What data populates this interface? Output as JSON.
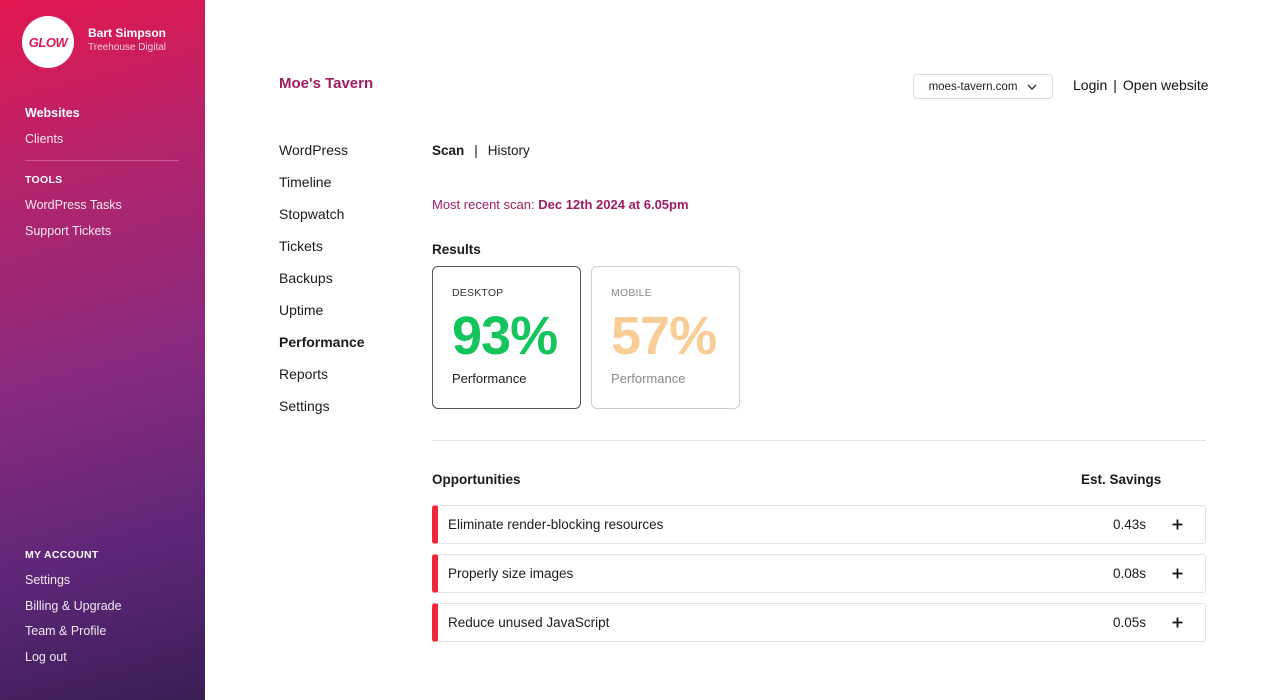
{
  "sidebar": {
    "logo_text": "GLOW",
    "user_name": "Bart Simpson",
    "company": "Treehouse Digital",
    "main_items": [
      {
        "label": "Websites",
        "active": true
      },
      {
        "label": "Clients",
        "active": false
      }
    ],
    "tools_heading": "TOOLS",
    "tools_items": [
      {
        "label": "WordPress Tasks"
      },
      {
        "label": "Support Tickets"
      }
    ],
    "account_heading": "MY ACCOUNT",
    "account_items": [
      {
        "label": "Settings"
      },
      {
        "label": "Billing & Upgrade"
      },
      {
        "label": "Team & Profile"
      },
      {
        "label": "Log out"
      }
    ],
    "gradient_colors": [
      "#e3174f",
      "#8a2a7e",
      "#3a1e55"
    ]
  },
  "header": {
    "site_title": "Moe's Tavern",
    "domain_selected": "moes-tavern.com",
    "login_label": "Login",
    "separator": "|",
    "open_website_label": "Open website"
  },
  "subnav": {
    "items": [
      {
        "label": "WordPress",
        "active": false
      },
      {
        "label": "Timeline",
        "active": false
      },
      {
        "label": "Stopwatch",
        "active": false
      },
      {
        "label": "Tickets",
        "active": false
      },
      {
        "label": "Backups",
        "active": false
      },
      {
        "label": "Uptime",
        "active": false
      },
      {
        "label": "Performance",
        "active": true
      },
      {
        "label": "Reports",
        "active": false
      },
      {
        "label": "Settings",
        "active": false
      }
    ]
  },
  "main": {
    "tabs": [
      {
        "label": "Scan",
        "active": true
      },
      {
        "label": "History",
        "active": false
      }
    ],
    "tab_separator": "|",
    "scan_prefix": "Most recent scan:",
    "scan_date": "Dec 12th 2024 at 6.05pm",
    "results_title": "Results",
    "cards": {
      "desktop": {
        "label": "DESKTOP",
        "value": "93%",
        "caption": "Performance",
        "color": "#14c45c"
      },
      "mobile": {
        "label": "MOBILE",
        "value": "57%",
        "caption": "Performance",
        "color": "#f9cd96"
      }
    },
    "opportunities_title": "Opportunities",
    "savings_title": "Est. Savings",
    "opportunities": [
      {
        "name": "Eliminate render-blocking resources",
        "saving": "0.43s"
      },
      {
        "name": "Properly size images",
        "saving": "0.08s"
      },
      {
        "name": "Reduce unused JavaScript",
        "saving": "0.05s"
      }
    ],
    "accent_color": "#a01c63",
    "warning_color": "#f0263a"
  }
}
